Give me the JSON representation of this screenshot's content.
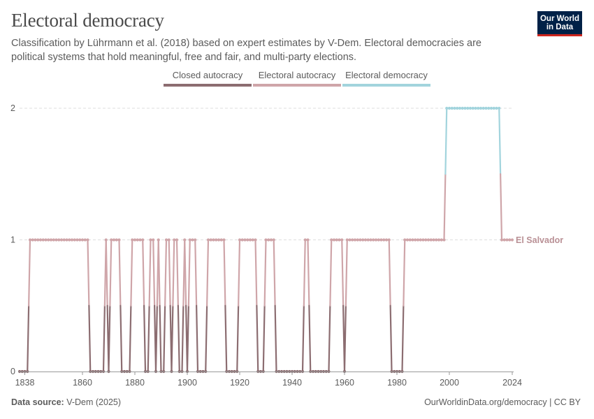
{
  "header": {
    "title": "Electoral democracy",
    "subtitle": "Classification by Lührmann et al. (2018) based on expert estimates by V-Dem. Electoral democracies are political systems that hold meaningful, free and fair, and multi-party elections."
  },
  "logo": {
    "line1": "Our World",
    "line2": "in Data"
  },
  "legend": [
    {
      "label": "Closed autocracy",
      "color": "#8c6d71"
    },
    {
      "label": "Electoral autocracy",
      "color": "#cfa5a9"
    },
    {
      "label": "Electoral democracy",
      "color": "#a2d4dd"
    }
  ],
  "footer": {
    "source_label": "Data source:",
    "source_value": "V-Dem (2025)",
    "url": "OurWorldinData.org/democracy | CC BY"
  },
  "chart_data": {
    "type": "line",
    "title": "Electoral democracy",
    "xlabel": "",
    "ylabel": "",
    "x_range": [
      1836,
      2024
    ],
    "ylim": [
      0,
      2
    ],
    "y_ticks": [
      0,
      1,
      2
    ],
    "x_ticks": [
      1838,
      1860,
      1880,
      1900,
      1920,
      1940,
      1960,
      1980,
      2000,
      2024
    ],
    "grid": "horizontal dashed",
    "colors": {
      "0": "#8c6d71",
      "1": "#cfa5a9",
      "2": "#a2d4dd"
    },
    "series": [
      {
        "name": "El Salvador",
        "label_color": "#b99095",
        "segments": [
          {
            "from": 1836,
            "to": 1839,
            "value": 0
          },
          {
            "from": 1840,
            "to": 1862,
            "value": 1
          },
          {
            "from": 1863,
            "to": 1868,
            "value": 0
          },
          {
            "from": 1869,
            "to": 1869,
            "value": 1
          },
          {
            "from": 1870,
            "to": 1870,
            "value": 0
          },
          {
            "from": 1871,
            "to": 1874,
            "value": 1
          },
          {
            "from": 1875,
            "to": 1878,
            "value": 0
          },
          {
            "from": 1879,
            "to": 1883,
            "value": 1
          },
          {
            "from": 1884,
            "to": 1885,
            "value": 0
          },
          {
            "from": 1886,
            "to": 1887,
            "value": 1
          },
          {
            "from": 1888,
            "to": 1888,
            "value": 0
          },
          {
            "from": 1889,
            "to": 1889,
            "value": 1
          },
          {
            "from": 1890,
            "to": 1891,
            "value": 0
          },
          {
            "from": 1892,
            "to": 1893,
            "value": 1
          },
          {
            "from": 1894,
            "to": 1894,
            "value": 0
          },
          {
            "from": 1895,
            "to": 1896,
            "value": 1
          },
          {
            "from": 1897,
            "to": 1898,
            "value": 0
          },
          {
            "from": 1899,
            "to": 1899,
            "value": 1
          },
          {
            "from": 1900,
            "to": 1900,
            "value": 0
          },
          {
            "from": 1901,
            "to": 1903,
            "value": 1
          },
          {
            "from": 1904,
            "to": 1907,
            "value": 0
          },
          {
            "from": 1908,
            "to": 1914,
            "value": 1
          },
          {
            "from": 1915,
            "to": 1919,
            "value": 0
          },
          {
            "from": 1920,
            "to": 1926,
            "value": 1
          },
          {
            "from": 1927,
            "to": 1929,
            "value": 0
          },
          {
            "from": 1930,
            "to": 1933,
            "value": 1
          },
          {
            "from": 1934,
            "to": 1944,
            "value": 0
          },
          {
            "from": 1945,
            "to": 1946,
            "value": 1
          },
          {
            "from": 1947,
            "to": 1954,
            "value": 0
          },
          {
            "from": 1955,
            "to": 1959,
            "value": 1
          },
          {
            "from": 1960,
            "to": 1960,
            "value": 0
          },
          {
            "from": 1961,
            "to": 1977,
            "value": 1
          },
          {
            "from": 1978,
            "to": 1982,
            "value": 0
          },
          {
            "from": 1983,
            "to": 1998,
            "value": 1
          },
          {
            "from": 1999,
            "to": 2019,
            "value": 2
          },
          {
            "from": 2020,
            "to": 2024,
            "value": 1
          }
        ]
      }
    ]
  }
}
